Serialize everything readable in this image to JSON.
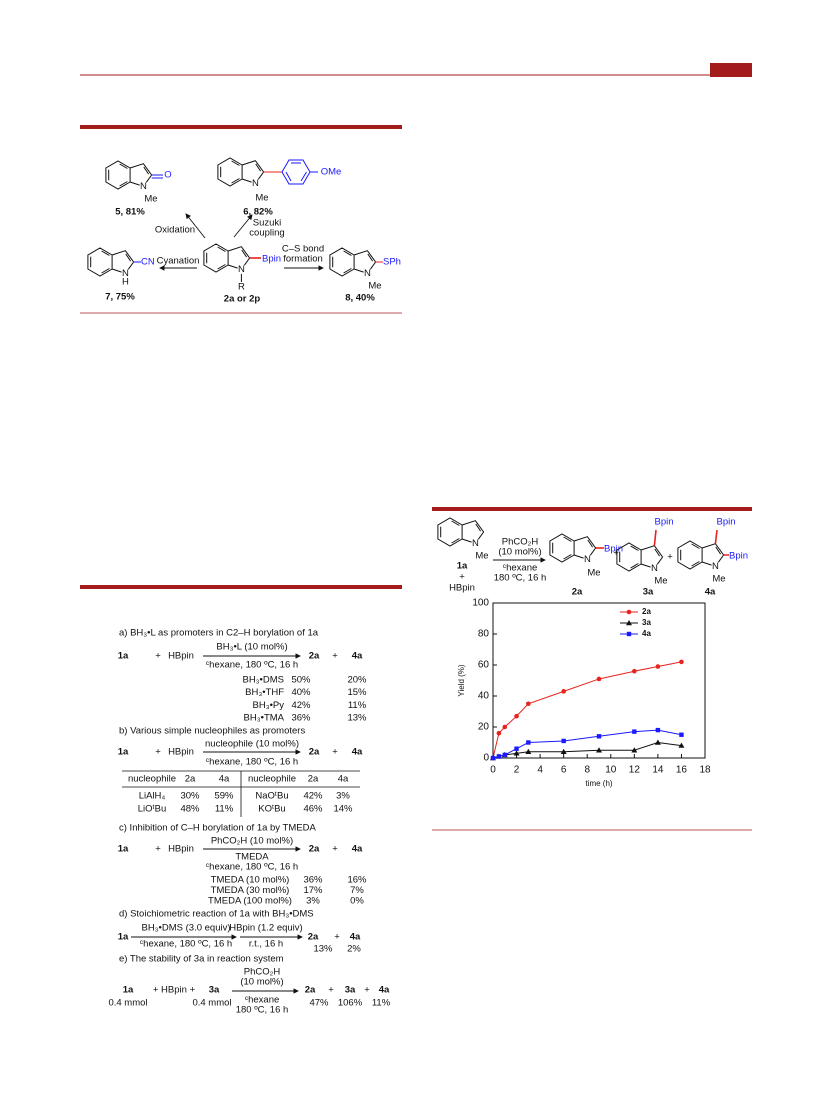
{
  "scheme1": {
    "c5": {
      "o": "O",
      "n": "N",
      "me": "Me",
      "label": "5, 81%"
    },
    "c6": {
      "n": "N",
      "me": "Me",
      "ome": "OMe",
      "label": "6, 82%"
    },
    "c2": {
      "n": "N",
      "bpin": "Bpin",
      "r": "R",
      "label": "2a or 2p"
    },
    "c7": {
      "n": "N",
      "h": "H",
      "cn": "CN",
      "label": "7, 75%"
    },
    "c8": {
      "n": "N",
      "me": "Me",
      "sph": "SPh",
      "label": "8, 40%"
    },
    "arrows": {
      "oxidation": "Oxidation",
      "suzuki": [
        "Suzuki",
        "coupling"
      ],
      "cyanation": "Cyanation",
      "cs": [
        "C–S bond",
        "formation"
      ]
    }
  },
  "scheme2": {
    "a": {
      "title": "a) BH₃•L as promoters in C2–H borylation of 1a",
      "eq": [
        "1a",
        "+",
        "HBpin",
        "2a",
        "+",
        "4a"
      ],
      "above": "BH₃•L (10 mol%)",
      "below": "ᶜhexane, 180 ºC, 16 h",
      "rows": [
        [
          "BH₃•DMS",
          "50%",
          "20%"
        ],
        [
          "BH₃•THF",
          "40%",
          "15%"
        ],
        [
          "BH₃•Py",
          "42%",
          "11%"
        ],
        [
          "BH₃•TMA",
          "36%",
          "13%"
        ]
      ]
    },
    "b": {
      "title": "b) Various simple nucleophiles as promoters",
      "eq": [
        "1a",
        "+",
        "HBpin",
        "2a",
        "+",
        "4a"
      ],
      "above": "nucleophile (10 mol%)",
      "below": "ᶜhexane, 180 ºC, 16 h",
      "header": [
        "nucleophile",
        "2a",
        "4a",
        "nucleophile",
        "2a",
        "4a"
      ],
      "rows": [
        [
          "LiAlH₄",
          "30%",
          "59%",
          "NaOᵗBu",
          "42%",
          "3%"
        ],
        [
          "LiOᵗBu",
          "48%",
          "11%",
          "KOᵗBu",
          "46%",
          "14%"
        ]
      ]
    },
    "c": {
      "title": "c) Inhibition of C–H borylation of 1a by TMEDA",
      "eq": [
        "1a",
        "+",
        "HBpin",
        "2a",
        "+",
        "4a"
      ],
      "above": "PhCO₂H (10 mol%)",
      "below": [
        "TMEDA",
        "ᶜhexane, 180 ºC, 16 h"
      ],
      "rows": [
        [
          "TMEDA (10 mol%)",
          "36%",
          "16%"
        ],
        [
          "TMEDA (30 mol%)",
          "17%",
          "7%"
        ],
        [
          "TMEDA (100 mol%)",
          "3%",
          "0%"
        ]
      ]
    },
    "d": {
      "title": "d) Stoichiometric reaction of 1a with BH₃•DMS",
      "start": "1a",
      "step1": [
        "BH₃•DMS (3.0 equiv)",
        "ᶜhexane, 180 ºC, 16 h"
      ],
      "step2": [
        "HBpin (1.2 equiv)",
        "r.t., 16 h"
      ],
      "eq": [
        "2a",
        "+",
        "4a"
      ],
      "yields": [
        "13%",
        "2%"
      ]
    },
    "e": {
      "title": "e) The stability of 3a in reaction system",
      "eq": [
        "1a",
        "+ HBpin +",
        "3a",
        "2a",
        "+",
        "3a",
        "+",
        "4a"
      ],
      "amounts": [
        "0.4 mmol",
        "0.4 mmol"
      ],
      "above": [
        "PhCO₂H",
        "(10 mol%)"
      ],
      "below": [
        "ᶜhexane",
        "180 ºC, 16 h"
      ],
      "yields": [
        "47%",
        "106%",
        "11%"
      ]
    }
  },
  "figure": {
    "sm": {
      "n": "N",
      "me": "Me",
      "id": "1a",
      "plus": "+",
      "hbpin": "HBpin"
    },
    "above": [
      "PhCO₂H",
      "(10 mol%)"
    ],
    "below": [
      "ᶜhexane",
      "180 ºC, 16 h"
    ],
    "p2a": {
      "bpin": "Bpin",
      "n": "N",
      "me": "Me",
      "id": "2a"
    },
    "plus1": "+",
    "p3a": {
      "bpin": "Bpin",
      "n": "N",
      "me": "Me",
      "id": "3a"
    },
    "plus2": "+",
    "p4a": {
      "bpin": [
        "Bpin",
        "Bpin"
      ],
      "n": "N",
      "me": "Me",
      "id": "4a"
    }
  },
  "chart_data": {
    "type": "line",
    "xlabel": "time (h)",
    "ylabel": "Yield (%)",
    "xlim": [
      0,
      18
    ],
    "xticks": [
      0,
      2,
      4,
      6,
      8,
      10,
      12,
      14,
      16,
      18
    ],
    "ylim": [
      0,
      100
    ],
    "yticks": [
      0,
      20,
      40,
      60,
      80,
      100
    ],
    "legend": "upper right",
    "series": [
      {
        "name": "2a",
        "color": "#e8231d",
        "marker": "circle",
        "x": [
          0,
          0.5,
          1,
          2,
          3,
          6,
          9,
          12,
          14,
          16
        ],
        "values": [
          0,
          16,
          20,
          27,
          35,
          43,
          51,
          56,
          59,
          62
        ]
      },
      {
        "name": "3a",
        "color": "#111111",
        "marker": "triangle",
        "x": [
          0,
          0.5,
          1,
          2,
          3,
          6,
          9,
          12,
          14,
          16
        ],
        "values": [
          0,
          1,
          2,
          3,
          4,
          4,
          5,
          5,
          10,
          8
        ]
      },
      {
        "name": "4a",
        "color": "#1a1aff",
        "marker": "square",
        "x": [
          0,
          0.5,
          1,
          2,
          3,
          6,
          9,
          12,
          14,
          16
        ],
        "values": [
          0,
          1,
          2,
          6,
          10,
          11,
          14,
          17,
          18,
          15
        ]
      }
    ]
  }
}
